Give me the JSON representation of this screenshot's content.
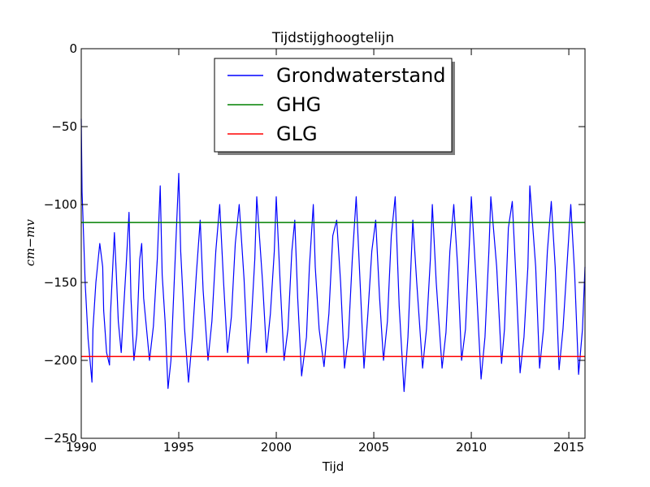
{
  "chart_data": {
    "type": "line",
    "title": "Tijdstijghoogtelijn",
    "xlabel": "Tijd",
    "ylabel": "cm−mv",
    "xlim": [
      1990,
      2015.83
    ],
    "ylim": [
      -250,
      0
    ],
    "xticks": [
      1990,
      1995,
      2000,
      2005,
      2010,
      2015
    ],
    "xtick_labels": [
      "1990",
      "1995",
      "2000",
      "2005",
      "2010",
      "2015"
    ],
    "yticks": [
      0,
      -50,
      -100,
      -150,
      -200,
      -250
    ],
    "ytick_labels": [
      "0",
      "−50",
      "−100",
      "−150",
      "−200",
      "−250"
    ],
    "legend_position": "top-center",
    "series": [
      {
        "name": "Grondwaterstand",
        "color": "#0000ff",
        "type": "line",
        "x": [
          1990.0,
          1990.04,
          1990.08,
          1990.2,
          1990.35,
          1990.45,
          1990.55,
          1990.6,
          1990.75,
          1990.95,
          1991.1,
          1991.15,
          1991.3,
          1991.45,
          1991.5,
          1991.7,
          1991.8,
          1991.9,
          1992.05,
          1992.15,
          1992.3,
          1992.45,
          1992.55,
          1992.7,
          1992.85,
          1993.0,
          1993.1,
          1993.2,
          1993.5,
          1993.7,
          1993.9,
          1994.05,
          1994.15,
          1994.3,
          1994.45,
          1994.6,
          1994.75,
          1994.9,
          1995.0,
          1995.1,
          1995.3,
          1995.5,
          1995.7,
          1995.9,
          1996.1,
          1996.25,
          1996.5,
          1996.7,
          1996.9,
          1997.1,
          1997.3,
          1997.5,
          1997.7,
          1997.9,
          1998.1,
          1998.35,
          1998.55,
          1998.7,
          1998.9,
          1999.0,
          1999.3,
          1999.5,
          1999.7,
          1999.9,
          2000.0,
          2000.2,
          2000.4,
          2000.6,
          2000.8,
          2000.95,
          2001.1,
          2001.3,
          2001.55,
          2001.7,
          2001.9,
          2002.0,
          2002.2,
          2002.45,
          2002.7,
          2002.9,
          2003.1,
          2003.3,
          2003.5,
          2003.7,
          2003.9,
          2004.1,
          2004.3,
          2004.5,
          2004.7,
          2004.9,
          2005.1,
          2005.3,
          2005.5,
          2005.7,
          2005.9,
          2006.1,
          2006.3,
          2006.55,
          2006.75,
          2006.9,
          2007.0,
          2007.2,
          2007.5,
          2007.7,
          2007.9,
          2008.0,
          2008.2,
          2008.5,
          2008.7,
          2008.9,
          2009.1,
          2009.3,
          2009.5,
          2009.7,
          2009.9,
          2010.0,
          2010.25,
          2010.5,
          2010.7,
          2010.9,
          2011.0,
          2011.3,
          2011.55,
          2011.7,
          2011.9,
          2012.1,
          2012.3,
          2012.5,
          2012.7,
          2012.9,
          2013.0,
          2013.3,
          2013.5,
          2013.7,
          2013.9,
          2014.1,
          2014.3,
          2014.5,
          2014.7,
          2014.9,
          2015.1,
          2015.3,
          2015.5,
          2015.7,
          2015.83
        ],
        "y": [
          -45,
          -92,
          -105,
          -150,
          -186,
          -200,
          -214,
          -180,
          -150,
          -125,
          -140,
          -168,
          -195,
          -203,
          -170,
          -118,
          -145,
          -175,
          -195,
          -172,
          -140,
          -105,
          -160,
          -200,
          -183,
          -135,
          -125,
          -160,
          -200,
          -178,
          -135,
          -88,
          -145,
          -175,
          -218,
          -200,
          -155,
          -110,
          -80,
          -130,
          -180,
          -214,
          -185,
          -145,
          -110,
          -155,
          -200,
          -175,
          -130,
          -100,
          -150,
          -195,
          -172,
          -125,
          -100,
          -148,
          -202,
          -180,
          -135,
          -95,
          -150,
          -195,
          -170,
          -130,
          -95,
          -150,
          -200,
          -180,
          -130,
          -110,
          -160,
          -210,
          -185,
          -140,
          -100,
          -140,
          -180,
          -204,
          -170,
          -120,
          -110,
          -150,
          -205,
          -185,
          -135,
          -95,
          -150,
          -205,
          -170,
          -130,
          -110,
          -160,
          -200,
          -175,
          -120,
          -95,
          -165,
          -220,
          -185,
          -140,
          -110,
          -150,
          -205,
          -180,
          -135,
          -100,
          -150,
          -205,
          -182,
          -130,
          -100,
          -140,
          -200,
          -180,
          -125,
          -95,
          -150,
          -212,
          -185,
          -130,
          -95,
          -140,
          -202,
          -180,
          -115,
          -98,
          -150,
          -208,
          -185,
          -140,
          -88,
          -140,
          -205,
          -180,
          -130,
          -98,
          -140,
          -206,
          -180,
          -140,
          -100,
          -145,
          -209,
          -180,
          -140
        ]
      },
      {
        "name": "GHG",
        "color": "#008000",
        "type": "hline",
        "y": -111.5
      },
      {
        "name": "GLG",
        "color": "#ff0000",
        "type": "hline",
        "y": -197.5
      }
    ]
  }
}
